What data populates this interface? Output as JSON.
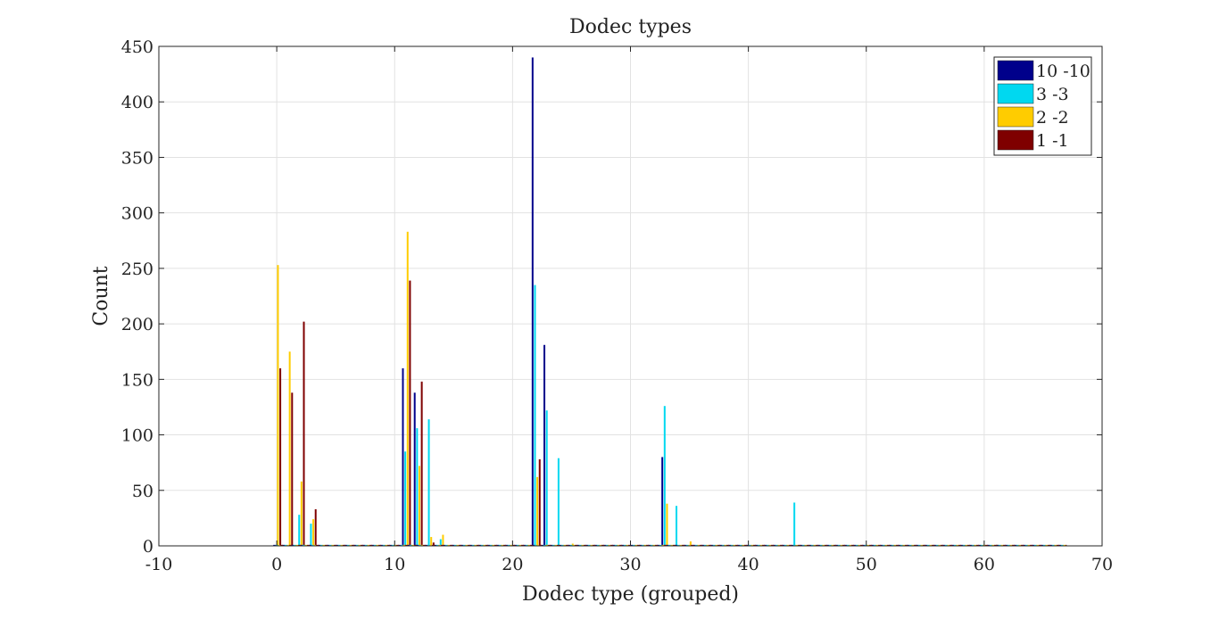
{
  "chart_data": {
    "type": "bar",
    "title": "Dodec types",
    "xlabel": "Dodec type (grouped)",
    "ylabel": "Count",
    "xlim": [
      -10,
      70
    ],
    "ylim": [
      0,
      450
    ],
    "xticks": [
      -10,
      0,
      10,
      20,
      30,
      40,
      50,
      60,
      70
    ],
    "yticks": [
      0,
      50,
      100,
      150,
      200,
      250,
      300,
      350,
      400,
      450
    ],
    "grid": true,
    "legend_position": "top-right",
    "series": [
      {
        "name": "10 -10",
        "color": "#00008b",
        "points": [
          [
            11,
            160
          ],
          [
            12,
            138
          ],
          [
            22,
            440
          ],
          [
            23,
            181
          ],
          [
            33,
            80
          ]
        ]
      },
      {
        "name": "3 -3",
        "color": "#00d8f0",
        "points": [
          [
            2,
            28
          ],
          [
            3,
            20
          ],
          [
            11,
            85
          ],
          [
            12,
            106
          ],
          [
            13,
            114
          ],
          [
            14,
            6
          ],
          [
            22,
            235
          ],
          [
            23,
            122
          ],
          [
            24,
            79
          ],
          [
            33,
            126
          ],
          [
            34,
            36
          ],
          [
            44,
            39
          ]
        ]
      },
      {
        "name": "2 -2",
        "color": "#ffcc00",
        "points": [
          [
            0,
            253
          ],
          [
            1,
            175
          ],
          [
            2,
            58
          ],
          [
            3,
            24
          ],
          [
            11,
            283
          ],
          [
            12,
            72
          ],
          [
            13,
            8
          ],
          [
            14,
            10
          ],
          [
            22,
            62
          ],
          [
            25,
            2
          ],
          [
            33,
            38
          ],
          [
            35,
            4
          ],
          [
            61,
            1
          ]
        ]
      },
      {
        "name": "1 -1",
        "color": "#7f0000",
        "points": [
          [
            0,
            160
          ],
          [
            1,
            138
          ],
          [
            2,
            202
          ],
          [
            3,
            33
          ],
          [
            11,
            239
          ],
          [
            12,
            148
          ],
          [
            13,
            3
          ],
          [
            22,
            78
          ]
        ]
      }
    ]
  }
}
